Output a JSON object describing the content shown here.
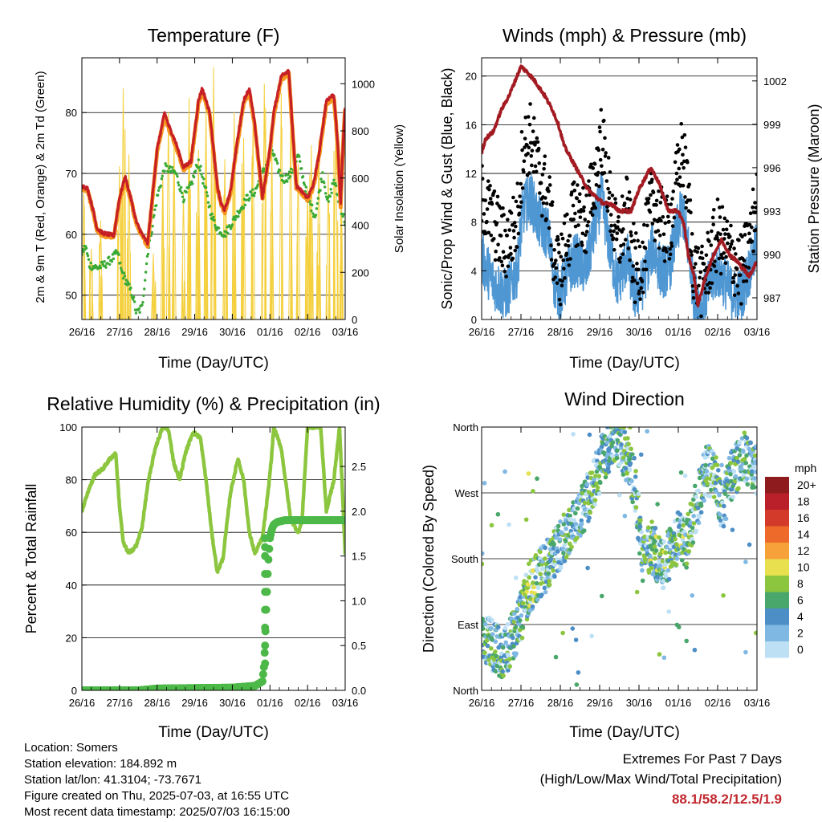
{
  "chart_data": [
    {
      "type": "line",
      "title": "Temperature (F)",
      "xlabel": "Time (Day/UTC)",
      "ylabel": "2m & 9m T (Red, Orange) & 2m Td (Green)",
      "y2label": "Solar Insolation (Yellow)",
      "x_ticks": [
        "26/16",
        "27/16",
        "28/16",
        "29/16",
        "30/16",
        "01/16",
        "02/16",
        "03/16"
      ],
      "y_ticks": [
        50,
        60,
        70,
        80
      ],
      "y2_ticks": [
        0,
        200,
        400,
        600,
        800,
        1000
      ],
      "ylim": [
        46,
        89
      ],
      "y2lim": [
        0,
        1110
      ],
      "grid": true,
      "series": [
        {
          "color": "#c62026",
          "x": [
            0,
            0.15,
            0.3,
            0.4,
            0.55,
            0.7,
            0.85,
            1.0,
            1.15,
            1.3,
            1.45,
            1.6,
            1.75,
            2.0,
            2.2,
            2.3,
            2.5,
            2.7,
            2.9,
            3.1,
            3.2,
            3.4,
            3.6,
            3.7,
            3.8,
            3.95,
            4.1,
            4.3,
            4.45,
            4.6,
            4.8,
            5.0,
            5.1,
            5.3,
            5.5,
            5.7,
            5.85,
            6.0,
            6.15,
            6.3,
            6.5,
            6.7,
            6.8,
            6.88,
            6.95,
            7.0
          ],
          "y": [
            68,
            67.5,
            64,
            61,
            60.2,
            60,
            59.8,
            66,
            69.5,
            66,
            62,
            60,
            58.5,
            74,
            80,
            78,
            75,
            71,
            72,
            82,
            84,
            80,
            68,
            65,
            64,
            67,
            74,
            82,
            84,
            78,
            66,
            74,
            80,
            86,
            87,
            68,
            67,
            66,
            68,
            73,
            82,
            83,
            75,
            65,
            76,
            81
          ]
        },
        {
          "color": "#f7941d",
          "x": [
            0,
            0.15,
            0.3,
            0.4,
            0.55,
            0.7,
            0.85,
            1.0,
            1.15,
            1.3,
            1.45,
            1.6,
            1.75,
            2.0,
            2.2,
            2.3,
            2.5,
            2.7,
            2.9,
            3.1,
            3.2,
            3.4,
            3.6,
            3.7,
            3.8,
            3.95,
            4.1,
            4.3,
            4.45,
            4.6,
            4.8,
            5.0,
            5.1,
            5.3,
            5.5,
            5.7,
            5.85,
            6.0,
            6.15,
            6.3,
            6.5,
            6.7,
            6.8,
            6.88,
            6.95,
            7.0
          ],
          "y": [
            67.6,
            67.2,
            63.7,
            60.7,
            59.9,
            59.7,
            59.5,
            65.6,
            69,
            65.7,
            61.7,
            59.7,
            58.2,
            73.6,
            79.5,
            77.6,
            74.6,
            70.7,
            71.6,
            81.5,
            83.5,
            79.6,
            67.7,
            64.7,
            63.7,
            66.6,
            73.6,
            81.5,
            83.4,
            77.6,
            65.7,
            73.6,
            79.5,
            85.5,
            86.4,
            67.7,
            66.7,
            65.7,
            67.7,
            72.6,
            81.5,
            82.5,
            74.6,
            64.7,
            75.6,
            80.6
          ]
        },
        {
          "color": "#3aa935",
          "x": [
            0,
            0.1,
            0.2,
            0.4,
            0.6,
            0.8,
            0.95,
            1.05,
            1.2,
            1.35,
            1.45,
            1.6,
            1.75,
            2.0,
            2.2,
            2.5,
            2.7,
            2.9,
            3.1,
            3.3,
            3.45,
            3.6,
            3.8,
            4.0,
            4.2,
            4.4,
            4.6,
            4.8,
            4.95,
            5.05,
            5.2,
            5.35,
            5.5,
            5.65,
            5.75,
            6.0,
            6.2,
            6.4,
            6.55,
            6.7,
            6.85,
            7.0
          ],
          "y": [
            57,
            58,
            55,
            54.5,
            55,
            56,
            57,
            54,
            52,
            50,
            47,
            48,
            57,
            66,
            71,
            70,
            66,
            68,
            72,
            67,
            63,
            61,
            60,
            62,
            64,
            66,
            67,
            70,
            72,
            74,
            71,
            69,
            69.5,
            71,
            73,
            66,
            63,
            70,
            65,
            69,
            65,
            62
          ]
        },
        {
          "color": "#f4d03f",
          "axis": "y2",
          "peak_x": [
            0.05,
            0.25,
            0.5,
            1.0,
            1.1,
            1.25,
            1.9,
            2.15,
            2.3,
            2.45,
            2.7,
            2.85,
            3.1,
            3.3,
            3.5,
            3.8,
            4.05,
            4.3,
            4.55,
            4.85,
            5.05,
            5.3,
            5.55,
            5.75,
            6.0,
            6.1,
            6.3,
            6.55,
            6.75,
            6.9
          ],
          "peak_y": [
            540,
            300,
            420,
            650,
            980,
            700,
            280,
            620,
            880,
            760,
            540,
            940,
            720,
            900,
            1070,
            680,
            880,
            770,
            850,
            1000,
            740,
            960,
            870,
            660,
            560,
            740,
            760,
            620,
            860,
            520
          ]
        }
      ]
    },
    {
      "type": "scatter",
      "title": "Winds (mph) & Pressure (mb)",
      "xlabel": "Time (Day/UTC)",
      "ylabel": "Sonic/Prop Wind & Gust (Blue, Black)",
      "y2label": "Station Pressure (Maroon)",
      "x_ticks": [
        "26/16",
        "27/16",
        "28/16",
        "29/16",
        "30/16",
        "01/16",
        "02/16",
        "03/16"
      ],
      "y_ticks": [
        0,
        4,
        8,
        12,
        16,
        20
      ],
      "y2_ticks": [
        987,
        990,
        993,
        996,
        999,
        1002
      ],
      "ylim": [
        0,
        21.5
      ],
      "y2lim": [
        985.5,
        1003.6
      ],
      "grid": true,
      "series": [
        {
          "name": "wind",
          "color": "#4f97d3",
          "x": [
            0,
            0.3,
            0.6,
            0.9,
            1.05,
            1.25,
            1.45,
            1.7,
            1.85,
            2.0,
            2.2,
            2.4,
            2.65,
            2.9,
            3.05,
            3.25,
            3.45,
            3.7,
            3.9,
            4.1,
            4.35,
            4.55,
            4.75,
            4.95,
            5.1,
            5.25,
            5.4,
            5.6,
            5.8,
            6.0,
            6.2,
            6.4,
            6.6,
            6.8,
            7.0
          ],
          "y": [
            5,
            3,
            2,
            4,
            9,
            10,
            8,
            7,
            3,
            2,
            4,
            5,
            4,
            8,
            10,
            6,
            3,
            5,
            2,
            3,
            6,
            4,
            4,
            7,
            9,
            6,
            2,
            1,
            3,
            4,
            3,
            2,
            2,
            4,
            6
          ]
        },
        {
          "name": "gust",
          "color": "#000000",
          "x": [
            0,
            0.3,
            0.6,
            0.9,
            1.05,
            1.25,
            1.45,
            1.7,
            1.85,
            2.0,
            2.2,
            2.4,
            2.65,
            2.9,
            3.05,
            3.25,
            3.45,
            3.7,
            3.9,
            4.1,
            4.35,
            4.55,
            4.75,
            4.95,
            5.1,
            5.25,
            5.4,
            5.6,
            5.8,
            6.0,
            6.2,
            6.4,
            6.6,
            6.8,
            7.0
          ],
          "y": [
            10,
            8,
            6,
            8,
            14,
            15,
            12,
            10,
            5,
            4,
            7,
            9,
            8,
            12,
            15,
            10,
            6,
            9,
            4,
            5,
            10,
            8,
            7,
            11,
            14,
            10,
            4,
            3,
            5,
            7,
            6,
            5,
            4,
            6,
            10
          ]
        },
        {
          "name": "pressure",
          "color": "#a31b22",
          "axis": "y2",
          "x": [
            0,
            0.1,
            0.3,
            0.5,
            0.7,
            0.85,
            1.0,
            1.2,
            1.35,
            1.6,
            1.8,
            1.95,
            2.1,
            2.3,
            2.5,
            2.7,
            2.9,
            3.1,
            3.3,
            3.5,
            3.8,
            4.0,
            4.3,
            4.5,
            4.75,
            5.0,
            5.15,
            5.25,
            5.4,
            5.5,
            5.7,
            5.9,
            6.1,
            6.3,
            6.5,
            6.65,
            6.8,
            7.0
          ],
          "y": [
            997,
            998,
            998.5,
            1000,
            1001,
            1002,
            1003,
            1002.5,
            1002,
            1001,
            1000,
            999,
            997.5,
            996.5,
            995.5,
            994.5,
            994,
            993.5,
            993.5,
            993,
            993,
            994.5,
            996,
            995,
            993,
            993,
            992,
            990,
            988.5,
            986.5,
            988.5,
            990,
            991,
            990,
            989.5,
            989,
            988.5,
            989.5
          ]
        }
      ]
    },
    {
      "type": "line",
      "title": "Relative Humidity (%) & Precipitation (in)",
      "xlabel": "Time (Day/UTC)",
      "ylabel": "Percent & Total Rainfall",
      "x_ticks": [
        "26/16",
        "27/16",
        "28/16",
        "29/16",
        "30/16",
        "01/16",
        "02/16",
        "03/16"
      ],
      "y_ticks": [
        0,
        20,
        40,
        60,
        80,
        100
      ],
      "y2_ticks": [
        "0.0",
        "0.5",
        "1.0",
        "1.5",
        "2.0",
        "2.5"
      ],
      "ylim": [
        0,
        100
      ],
      "y2lim": [
        0,
        2.94
      ],
      "grid": true,
      "series": [
        {
          "name": "rh",
          "color": "#8cc63f",
          "x": [
            0,
            0.15,
            0.35,
            0.55,
            0.75,
            0.9,
            1.0,
            1.1,
            1.25,
            1.45,
            1.6,
            1.75,
            1.95,
            2.15,
            2.3,
            2.45,
            2.6,
            2.75,
            2.95,
            3.15,
            3.3,
            3.45,
            3.6,
            3.75,
            3.95,
            4.15,
            4.3,
            4.45,
            4.6,
            4.8,
            4.95,
            5.05,
            5.1,
            5.3,
            5.55,
            5.75,
            5.85,
            6.0,
            6.2,
            6.35,
            6.5,
            6.7,
            6.85,
            7.0
          ],
          "y": [
            68,
            75,
            82,
            84,
            88,
            90,
            70,
            56,
            52,
            55,
            62,
            78,
            92,
            100,
            99,
            86,
            80,
            90,
            98,
            96,
            80,
            60,
            45,
            50,
            75,
            88,
            80,
            60,
            52,
            58,
            75,
            90,
            100,
            92,
            65,
            60,
            64,
            100,
            100,
            100,
            68,
            80,
            100,
            52
          ]
        },
        {
          "name": "precip",
          "color": "#4cb848",
          "axis": "y2",
          "x": [
            0,
            1.5,
            2.0,
            4.0,
            4.6,
            4.8,
            4.85,
            4.9,
            4.95,
            5.0,
            5.05,
            5.1,
            5.2,
            5.4,
            6.0,
            7.0
          ],
          "y": [
            0,
            0,
            0.02,
            0.03,
            0.05,
            0.1,
            0.3,
            0.9,
            1.4,
            1.7,
            1.8,
            1.85,
            1.88,
            1.9,
            1.9,
            1.9
          ]
        }
      ]
    },
    {
      "type": "scatter",
      "title": "Wind Direction",
      "xlabel": "Time (Day/UTC)",
      "ylabel": "Direction (Colored By Speed)",
      "x_ticks": [
        "26/16",
        "27/16",
        "28/16",
        "29/16",
        "30/16",
        "01/16",
        "02/16",
        "03/16"
      ],
      "y_ticks": [
        "North",
        "East",
        "South",
        "West",
        "North"
      ],
      "ylim": [
        0,
        360
      ],
      "legend": {
        "position": "right",
        "title": "mph",
        "labels": [
          "20+",
          "18",
          "16",
          "14",
          "12",
          "10",
          "8",
          "6",
          "4",
          "2",
          "0"
        ],
        "colors": [
          "#8e1b1e",
          "#b9202a",
          "#d43a2a",
          "#ee6a2a",
          "#f7a13a",
          "#e8e04f",
          "#8cc63f",
          "#4aa76b",
          "#4d8ec6",
          "#7fb8e3",
          "#bde0f5"
        ]
      },
      "series": [
        {
          "x": [
            0,
            0.3,
            0.6,
            1.0,
            1.2,
            1.5,
            1.8,
            2.0,
            2.3,
            2.6,
            2.9,
            3.1,
            3.4,
            3.6,
            3.9,
            4.1,
            4.3,
            4.6,
            4.8,
            5.0,
            5.2,
            5.5,
            5.7,
            5.9,
            6.1,
            6.4,
            6.7,
            7.0
          ],
          "y": [
            80,
            60,
            50,
            100,
            140,
            160,
            180,
            200,
            230,
            250,
            290,
            320,
            350,
            330,
            280,
            180,
            200,
            170,
            190,
            210,
            200,
            260,
            300,
            300,
            250,
            300,
            320,
            300
          ]
        }
      ]
    }
  ],
  "info": {
    "location": "Location: Somers",
    "elevation": "Station elevation: 184.892 m",
    "latlon": "Station lat/lon: 41.3104; -73.7671",
    "created": "Figure created on Thu, 2025-07-03, at 16:55 UTC",
    "recent": "Most recent data timestamp: 2025/07/03 16:15:00"
  },
  "extremes": {
    "title": "Extremes For Past 7 Days",
    "subtitle": "(High/Low/Max Wind/Total Precipitation)",
    "values": "88.1/58.2/12.5/1.9"
  }
}
